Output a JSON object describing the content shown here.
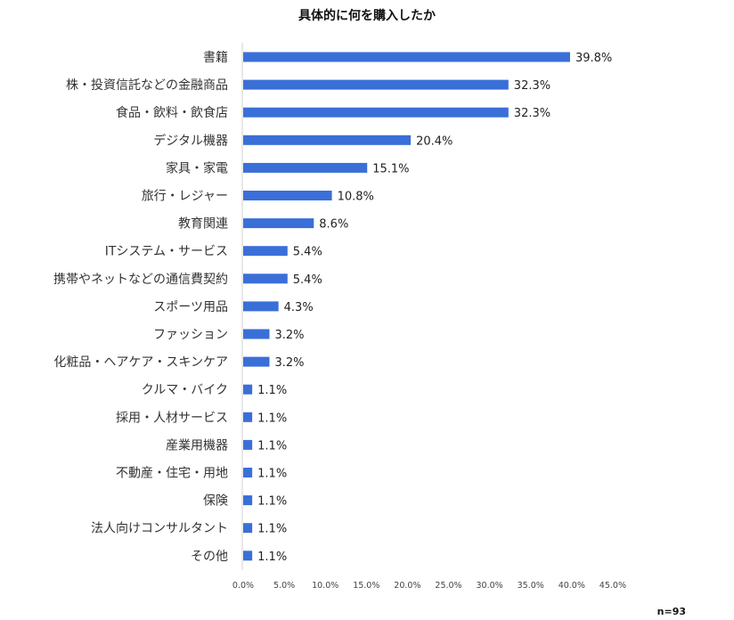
{
  "chart_data": {
    "type": "bar",
    "orientation": "horizontal",
    "title": "具体的に何を購入したか",
    "note": "n=93",
    "bar_color": "#3a6fd8",
    "xlim": [
      0,
      45
    ],
    "x_ticks": [
      "0.0%",
      "5.0%",
      "10.0%",
      "15.0%",
      "20.0%",
      "25.0%",
      "30.0%",
      "35.0%",
      "40.0%",
      "45.0%"
    ],
    "categories": [
      "書籍",
      "株・投資信託などの金融商品",
      "食品・飲料・飲食店",
      "デジタル機器",
      "家具・家電",
      "旅行・レジャー",
      "教育関連",
      "ITシステム・サービス",
      "携帯やネットなどの通信費契約",
      "スポーツ用品",
      "ファッション",
      "化粧品・ヘアケア・スキンケア",
      "クルマ・バイク",
      "採用・人材サービス",
      "産業用機器",
      "不動産・住宅・用地",
      "保険",
      "法人向けコンサルタント",
      "その他"
    ],
    "values": [
      39.8,
      32.3,
      32.3,
      20.4,
      15.1,
      10.8,
      8.6,
      5.4,
      5.4,
      4.3,
      3.2,
      3.2,
      1.1,
      1.1,
      1.1,
      1.1,
      1.1,
      1.1,
      1.1
    ],
    "value_labels": [
      "39.8%",
      "32.3%",
      "32.3%",
      "20.4%",
      "15.1%",
      "10.8%",
      "8.6%",
      "5.4%",
      "5.4%",
      "4.3%",
      "3.2%",
      "3.2%",
      "1.1%",
      "1.1%",
      "1.1%",
      "1.1%",
      "1.1%",
      "1.1%",
      "1.1%"
    ],
    "grid": false
  }
}
